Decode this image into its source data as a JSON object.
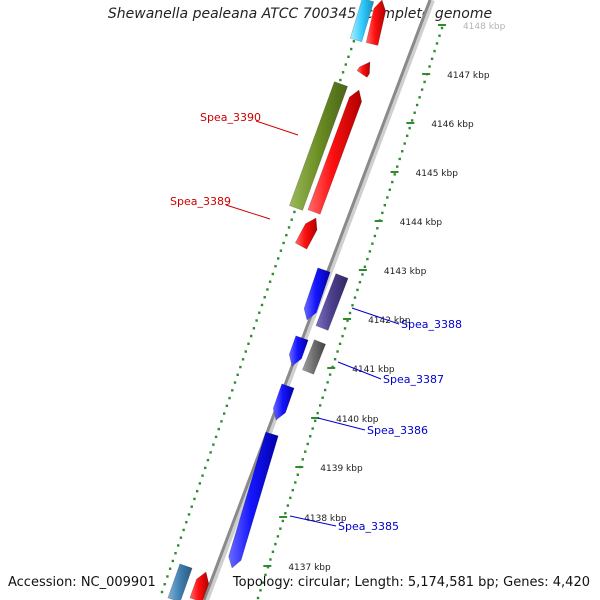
{
  "title": "Shewanella pealeana ATCC 700345, complete genome",
  "accession": "Accession: NC_009901",
  "summary": "Topology: circular; Length: 5,174,581 bp; Genes: 4,420",
  "ticks": [
    "4137 kbp",
    "4138 kbp",
    "4139 kbp",
    "4140 kbp",
    "4141 kbp",
    "4142 kbp",
    "4143 kbp",
    "4144 kbp",
    "4145 kbp",
    "4146 kbp",
    "4147 kbp",
    "4148 kbp"
  ],
  "labels": [
    {
      "text": "Spea_3390",
      "strand": "forward"
    },
    {
      "text": "Spea_3389",
      "strand": "forward"
    },
    {
      "text": "Spea_3388",
      "strand": "reverse"
    },
    {
      "text": "Spea_3387",
      "strand": "reverse"
    },
    {
      "text": "Spea_3386",
      "strand": "reverse"
    },
    {
      "text": "Spea_3385",
      "strand": "reverse"
    }
  ],
  "colors": {
    "backbone": "#8a8a8a",
    "dots": "#2e8b2e",
    "forward": "#e00000",
    "reverse": "#0000e0",
    "olive": "#6b8e23",
    "purple": "#4b3f8c",
    "gray": "#6e6e6e",
    "cyan": "#33ccff",
    "steel": "#3f7fb0",
    "label_forward": "#cc0000",
    "label_reverse": "#0000cc"
  }
}
